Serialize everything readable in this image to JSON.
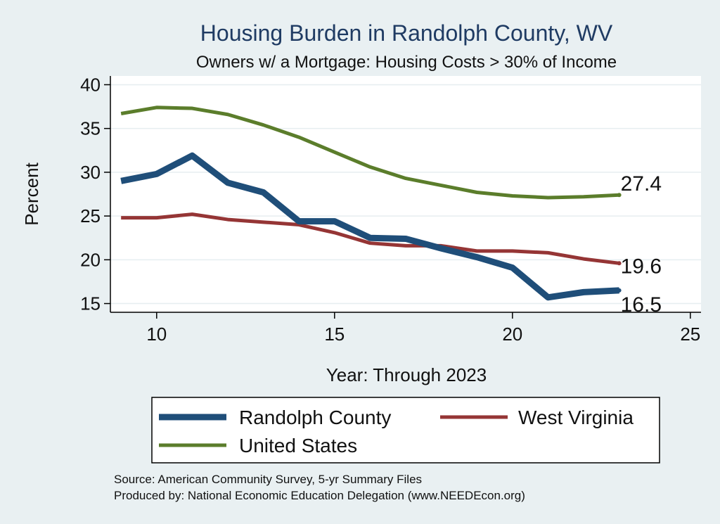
{
  "chart_data": {
    "type": "line",
    "title": "Housing Burden in Randolph County, WV",
    "subtitle": "Owners w/ a Mortgage: Housing Costs > 30% of Income",
    "xlabel": "Year: Through 2023",
    "ylabel": "Percent",
    "xlim": [
      8.7,
      25.3
    ],
    "ylim": [
      14,
      41
    ],
    "xticks": [
      10,
      15,
      20,
      25
    ],
    "yticks": [
      15,
      20,
      25,
      30,
      35,
      40
    ],
    "grid": true,
    "legend": "bottom",
    "x": [
      9,
      10,
      11,
      12,
      13,
      14,
      15,
      16,
      17,
      18,
      19,
      20,
      21,
      22,
      23
    ],
    "series": [
      {
        "name": "Randolph County",
        "color": "#1f4e79",
        "values": [
          29.0,
          29.8,
          31.9,
          28.8,
          27.7,
          24.4,
          24.4,
          22.5,
          22.4,
          21.3,
          20.3,
          19.1,
          15.7,
          16.3,
          16.5
        ],
        "end_label": "16.5"
      },
      {
        "name": "West Virginia",
        "color": "#953535",
        "values": [
          24.8,
          24.8,
          25.2,
          24.6,
          24.3,
          24.0,
          23.1,
          21.9,
          21.6,
          21.6,
          21.0,
          21.0,
          20.8,
          20.1,
          19.6
        ],
        "end_label": "19.6"
      },
      {
        "name": "United States",
        "color": "#5b7d2b",
        "values": [
          36.7,
          37.4,
          37.3,
          36.6,
          35.4,
          34.0,
          32.3,
          30.6,
          29.3,
          28.5,
          27.7,
          27.3,
          27.1,
          27.2,
          27.4
        ],
        "end_label": "27.4"
      }
    ],
    "source": "Source: American Community Survey, 5-yr Summary Files",
    "produced_by": "Produced by: National Economic Education Delegation (www.NEEDEcon.org)"
  }
}
